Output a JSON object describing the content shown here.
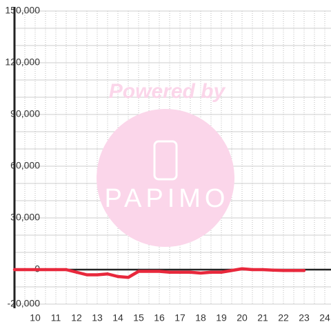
{
  "chart_data": {
    "type": "line",
    "watermark": {
      "text": "Powered by",
      "logo": "PAPIMO"
    },
    "x": [
      9,
      9.5,
      10,
      10.5,
      11,
      11.5,
      12,
      12.5,
      13,
      13.5,
      14,
      14.5,
      15,
      15.5,
      16,
      16.5,
      17,
      17.5,
      18,
      18.5,
      19,
      19.5,
      20,
      20.5,
      21,
      21.5,
      22,
      22.5,
      23
    ],
    "series": [
      {
        "color": "#e8283c",
        "values": [
          0,
          0,
          0,
          0,
          0,
          0,
          -1500,
          -3000,
          -3000,
          -2500,
          -4000,
          -4500,
          -1000,
          -1000,
          -1000,
          -1500,
          -1500,
          -1500,
          -2000,
          -1500,
          -1500,
          -500,
          500,
          0,
          0,
          -300,
          -500,
          -500,
          -500
        ]
      }
    ],
    "xlim": [
      9,
      24.3
    ],
    "xticks": [
      10,
      11,
      12,
      13,
      14,
      15,
      16,
      17,
      18,
      19,
      20,
      21,
      22,
      23,
      24
    ],
    "minor_xticks": [
      9.5,
      10.5,
      11.5,
      12.5,
      13.5,
      14.5,
      15.5,
      16.5,
      17.5,
      18.5,
      19.5,
      20.5,
      21.5,
      22.5,
      23.5
    ],
    "ylim": [
      -20000,
      150000
    ],
    "yticks": [
      {
        "value": -20000,
        "label": "-20,000"
      },
      0,
      {
        "value": 30000,
        "label": "30,000"
      },
      {
        "value": 60000,
        "label": "60,000"
      },
      {
        "value": 90000,
        "label": "90,000"
      },
      {
        "value": 120000,
        "label": "120,000"
      },
      {
        "value": 150000,
        "label": "150,000"
      }
    ],
    "minor_yticks": [
      -10000,
      10000,
      20000,
      40000,
      50000,
      70000,
      80000,
      100000,
      110000,
      130000,
      140000
    ],
    "grid": true
  }
}
